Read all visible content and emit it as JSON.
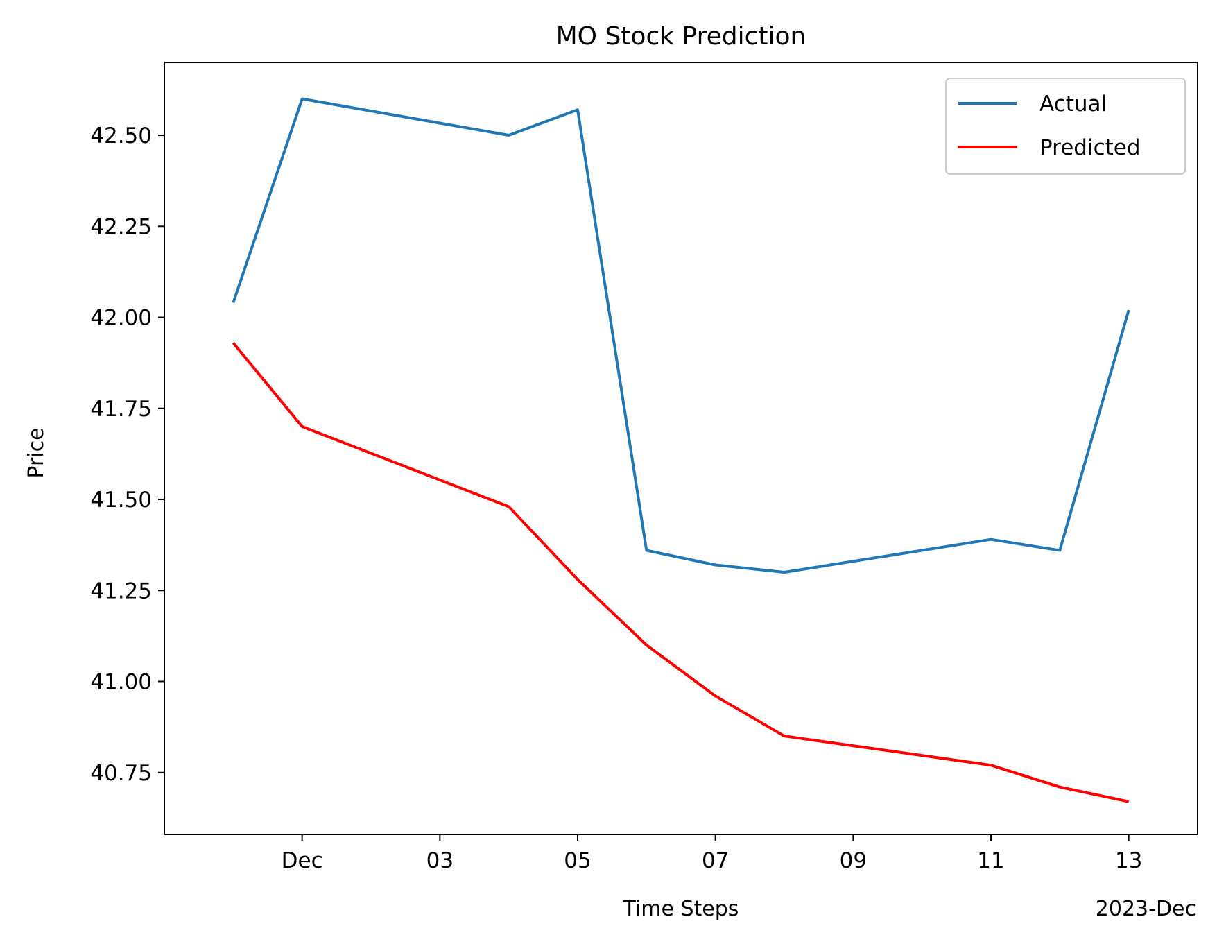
{
  "chart_data": {
    "type": "line",
    "title": "MO Stock Prediction",
    "xlabel": "Time Steps",
    "ylabel": "Price",
    "x": [
      "2023-11-30",
      "2023-12-01",
      "2023-12-04",
      "2023-12-05",
      "2023-12-06",
      "2023-12-07",
      "2023-12-08",
      "2023-12-11",
      "2023-12-12",
      "2023-12-13"
    ],
    "series": [
      {
        "name": "Actual",
        "color": "#1f77b4",
        "values": [
          42.04,
          42.6,
          42.5,
          42.57,
          41.36,
          41.32,
          41.3,
          41.39,
          41.36,
          42.02
        ]
      },
      {
        "name": "Predicted",
        "color": "#ff0000",
        "values": [
          41.93,
          41.7,
          41.48,
          41.28,
          41.1,
          40.96,
          40.85,
          40.77,
          40.71,
          40.67
        ]
      }
    ],
    "x_ticks": [
      {
        "date": "2023-12-01",
        "label": "Dec"
      },
      {
        "date": "2023-12-03",
        "label": "03"
      },
      {
        "date": "2023-12-05",
        "label": "05"
      },
      {
        "date": "2023-12-07",
        "label": "07"
      },
      {
        "date": "2023-12-09",
        "label": "09"
      },
      {
        "date": "2023-12-11",
        "label": "11"
      },
      {
        "date": "2023-12-13",
        "label": "13"
      }
    ],
    "x_offset_label": "2023-Dec",
    "y_ticks": [
      40.75,
      41.0,
      41.25,
      41.5,
      41.75,
      42.0,
      42.25,
      42.5
    ],
    "y_tick_labels": [
      "40.75",
      "41.00",
      "41.25",
      "41.50",
      "41.75",
      "42.00",
      "42.25",
      "42.50"
    ],
    "xlim": [
      "2023-11-29",
      "2023-12-14"
    ],
    "ylim": [
      40.58,
      42.7
    ],
    "grid": false,
    "legend": "top-right"
  }
}
